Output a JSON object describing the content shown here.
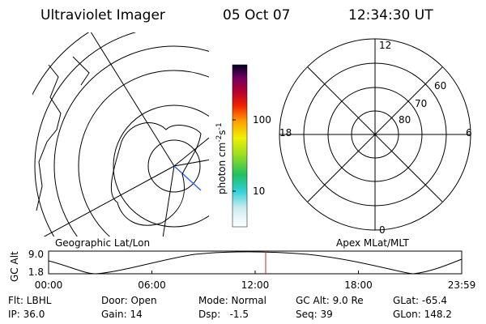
{
  "header": {
    "instrument": "Ultraviolet Imager",
    "date": "05 Oct 07",
    "time": "12:34:30 UT"
  },
  "colorbar": {
    "unit": {
      "base": "photon cm",
      "exp1": "-2",
      "mid": "s",
      "exp2": "-1"
    },
    "ticks": [
      "100",
      "10"
    ]
  },
  "polar": {
    "mlt_labels": [
      "12",
      "18",
      "6",
      "0"
    ],
    "lat_labels": [
      "60",
      "70",
      "80"
    ]
  },
  "panels": {
    "left_title": "Geographic Lat/Lon",
    "right_title": "Apex MLat/MLT"
  },
  "altitude": {
    "label": "GC Alt",
    "yticks": [
      "9.0",
      "1.8"
    ],
    "xticks": [
      "00:00",
      "06:00",
      "12:00",
      "18:00",
      "23:59"
    ]
  },
  "footer": [
    [
      "Flt: LBHL",
      "Door: Open",
      "Mode: Normal",
      "GC Alt: 9.0 Re",
      "GLat: -65.4"
    ],
    [
      "IP: 36.0",
      "Gain: 14",
      "Dsp:   -1.5",
      "Seq: 39",
      "GLon: 148.2"
    ]
  ]
}
